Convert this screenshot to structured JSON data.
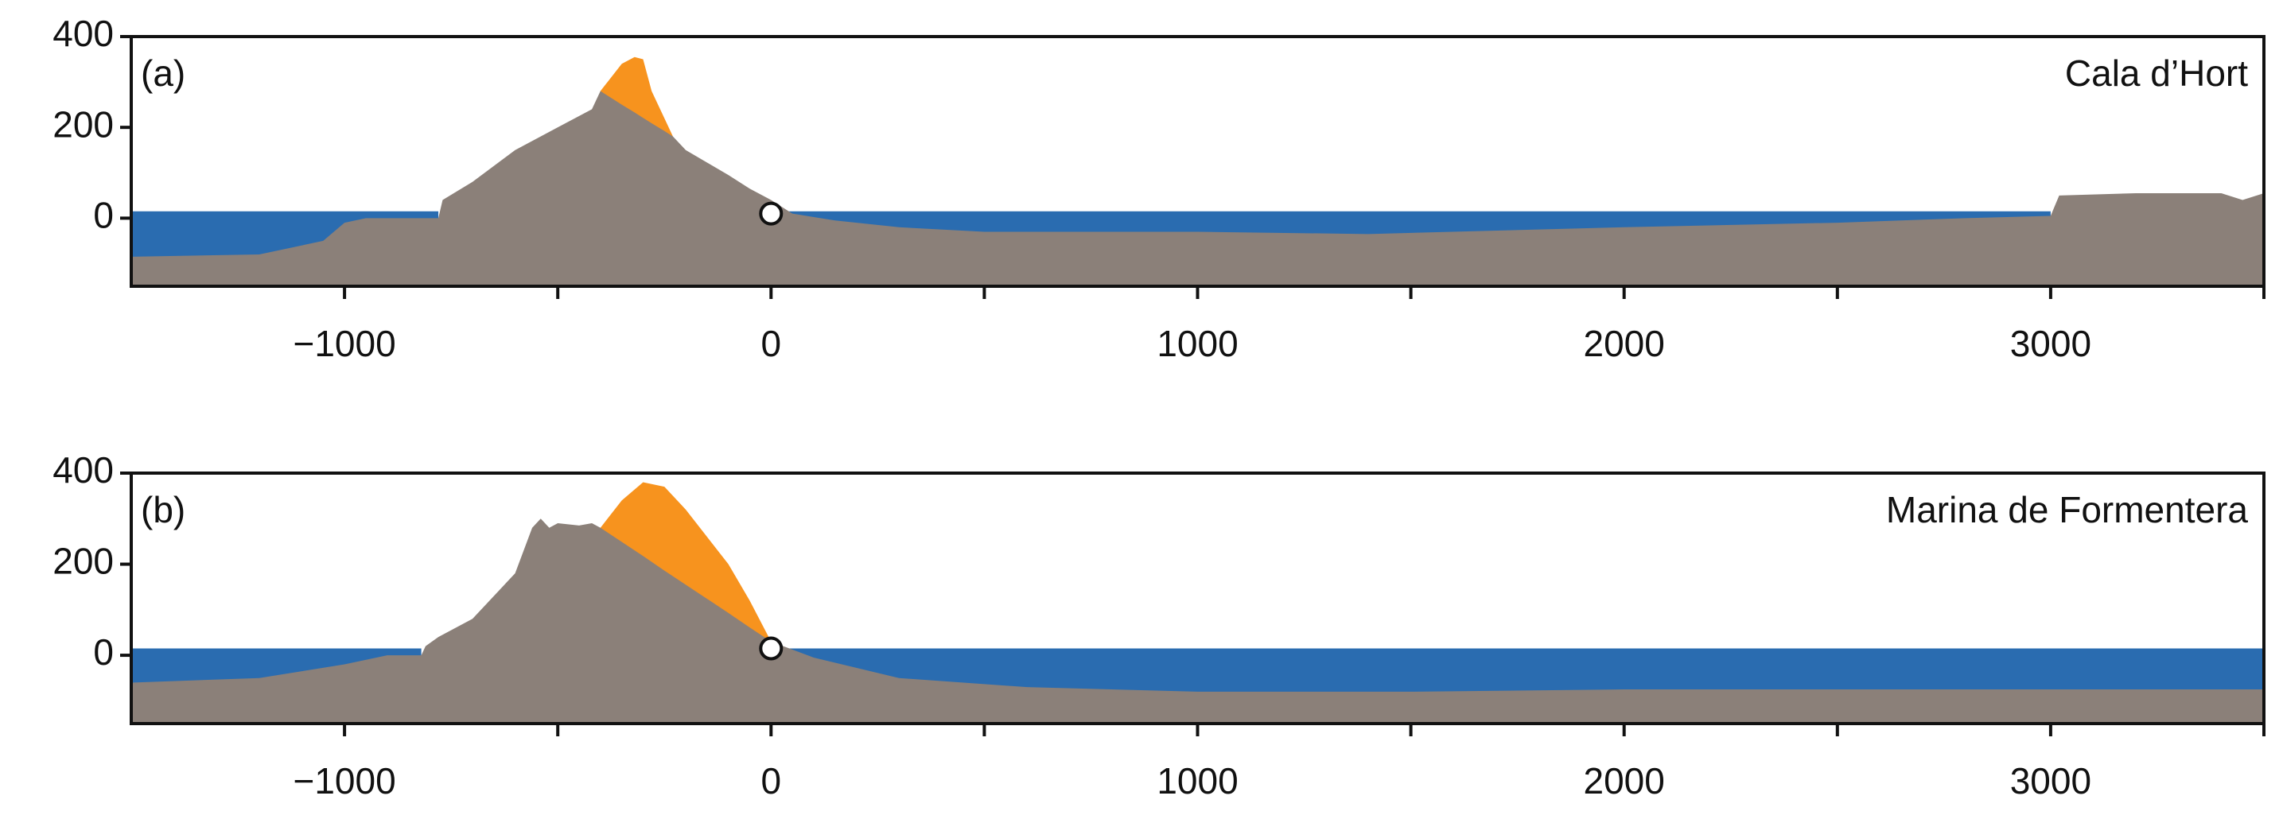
{
  "chart_data": [
    {
      "type": "area",
      "panel_label": "(a)",
      "annotation": "Cala d’Hort",
      "x": [
        -1500,
        -1200,
        -1050,
        -1000,
        -950,
        -780,
        -770,
        -700,
        -600,
        -500,
        -420,
        -400,
        -350,
        -320,
        -300,
        -280,
        -250,
        -230,
        -200,
        -100,
        -50,
        0,
        50,
        150,
        300,
        500,
        1000,
        1400,
        2000,
        2500,
        2800,
        3000,
        3020,
        3200,
        3400,
        3450,
        3500
      ],
      "series": [
        {
          "color": "#2a6cb0",
          "values": [
            15,
            15,
            15,
            15,
            15,
            15,
            null,
            null,
            null,
            null,
            null,
            null,
            null,
            null,
            null,
            null,
            null,
            null,
            null,
            null,
            null,
            15,
            15,
            15,
            15,
            15,
            15,
            15,
            15,
            15,
            15,
            15,
            null,
            null,
            null,
            null,
            null
          ]
        },
        {
          "color": "#f7931e",
          "values": [
            null,
            null,
            null,
            null,
            null,
            null,
            null,
            null,
            null,
            null,
            null,
            280,
            340,
            355,
            350,
            280,
            220,
            180,
            null,
            null,
            null,
            null,
            null,
            null,
            null,
            null,
            null,
            null,
            null,
            null,
            null,
            null,
            null,
            null,
            null,
            null,
            null
          ]
        },
        {
          "color": "#8b8079",
          "values": [
            -85,
            -80,
            -50,
            -10,
            0,
            0,
            40,
            80,
            150,
            200,
            240,
            280,
            250,
            233,
            221,
            209,
            192,
            180,
            150,
            95,
            65,
            40,
            10,
            -5,
            -20,
            -30,
            -30,
            -35,
            -20,
            -10,
            0,
            5,
            50,
            55,
            55,
            40,
            55
          ]
        }
      ],
      "point_x": 0,
      "point_y": 10,
      "xlim": [
        -1500,
        3500
      ],
      "ylim": [
        -150,
        400
      ],
      "xticks": [
        {
          "value": -1000,
          "label": "−1000"
        },
        0,
        1000,
        2000,
        3000
      ],
      "xminorticks": [
        -500,
        500,
        1500,
        2500,
        3500
      ],
      "yticks": [
        0,
        200,
        400
      ]
    },
    {
      "type": "area",
      "panel_label": "(b)",
      "annotation": "Marina de Formentera",
      "x": [
        -1500,
        -1200,
        -1000,
        -900,
        -820,
        -810,
        -780,
        -700,
        -600,
        -560,
        -540,
        -520,
        -500,
        -450,
        -420,
        -400,
        -350,
        -300,
        -250,
        -200,
        -100,
        -50,
        0,
        100,
        300,
        600,
        1000,
        1500,
        2000,
        3000,
        3500
      ],
      "series": [
        {
          "color": "#2a6cb0",
          "values": [
            15,
            15,
            15,
            15,
            15,
            null,
            null,
            null,
            null,
            null,
            null,
            null,
            null,
            null,
            null,
            null,
            null,
            null,
            null,
            null,
            null,
            null,
            15,
            15,
            15,
            15,
            15,
            15,
            15,
            15,
            15
          ]
        },
        {
          "color": "#f7931e",
          "values": [
            null,
            null,
            null,
            null,
            null,
            null,
            null,
            null,
            null,
            null,
            null,
            null,
            null,
            null,
            null,
            280,
            340,
            380,
            370,
            320,
            200,
            120,
            30,
            null,
            null,
            null,
            null,
            null,
            null,
            null,
            null
          ]
        },
        {
          "color": "#8b8079",
          "values": [
            -60,
            -50,
            -20,
            0,
            0,
            20,
            40,
            80,
            180,
            280,
            300,
            280,
            290,
            285,
            290,
            280,
            249,
            218,
            186,
            155,
            93,
            61,
            30,
            -5,
            -50,
            -70,
            -80,
            -80,
            -75,
            -75,
            -75
          ]
        }
      ],
      "point_x": 0,
      "point_y": 15,
      "xlim": [
        -1500,
        3500
      ],
      "ylim": [
        -150,
        400
      ],
      "xticks": [
        {
          "value": -1000,
          "label": "−1000"
        },
        0,
        1000,
        2000,
        3000
      ],
      "xminorticks": [
        -500,
        500,
        1500,
        2500,
        3500
      ],
      "yticks": [
        0,
        200,
        400
      ]
    }
  ]
}
